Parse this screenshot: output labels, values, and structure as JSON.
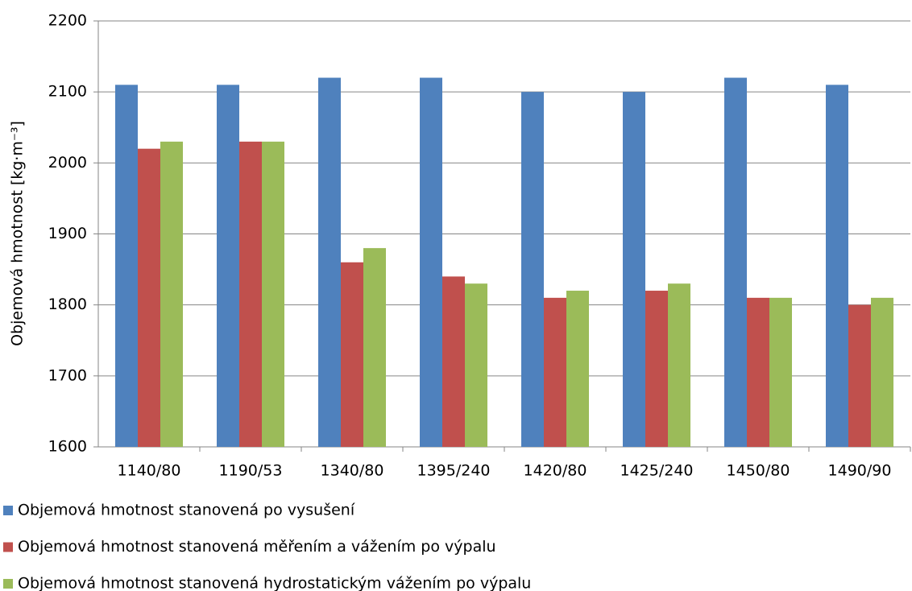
{
  "chart_data": {
    "type": "bar",
    "y_axis_label": "Objemová hmotnost [kg·m⁻³]",
    "categories": [
      "1140/80",
      "1190/53",
      "1340/80",
      "1395/240",
      "1420/80",
      "1425/240",
      "1450/80",
      "1490/90"
    ],
    "series": [
      {
        "name": "Objemová hmotnost stanovená po vysušení",
        "color": "#4f81bd",
        "values": [
          2110,
          2110,
          2120,
          2120,
          2100,
          2100,
          2120,
          2110
        ]
      },
      {
        "name": "Objemová hmotnost stanovená měřením a vážením po výpalu",
        "color": "#c0504d",
        "values": [
          2020,
          2030,
          1860,
          1840,
          1810,
          1820,
          1810,
          1800
        ]
      },
      {
        "name": "Objemová hmotnost stanovená hydrostatickým vážením po výpalu",
        "color": "#9bbb59",
        "values": [
          2030,
          2030,
          1880,
          1830,
          1820,
          1830,
          1810,
          1810
        ]
      }
    ],
    "ylim": [
      1600,
      2200
    ],
    "yticks": [
      1600,
      1700,
      1800,
      1900,
      2000,
      2100,
      2200
    ],
    "grid": true,
    "legend": "bottom"
  }
}
